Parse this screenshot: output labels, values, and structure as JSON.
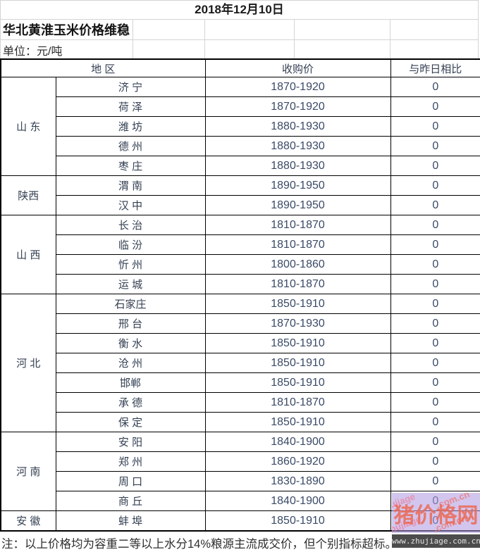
{
  "page": {
    "date_title": "2018年12月10日",
    "headline": "华北黄淮玉米价格维稳",
    "unit_label": "单位：元/吨",
    "note": "注：以上价格均为容重二等以上水分14%粮源主流成交价，但个别指标超标。"
  },
  "table": {
    "headers": {
      "region": "地 区",
      "price": "收购价",
      "compare": "与昨日相比"
    },
    "sections": [
      {
        "province": "山 东",
        "rows": [
          {
            "city": "济 宁",
            "price": "1870-1920",
            "compare": "0"
          },
          {
            "city": "荷 泽",
            "price": "1870-1920",
            "compare": "0"
          },
          {
            "city": "潍 坊",
            "price": "1880-1930",
            "compare": "0"
          },
          {
            "city": "德 州",
            "price": "1880-1930",
            "compare": "0"
          },
          {
            "city": "枣 庄",
            "price": "1880-1930",
            "compare": "0"
          }
        ]
      },
      {
        "province": "陕西",
        "rows": [
          {
            "city": "渭 南",
            "price": "1890-1950",
            "compare": "0"
          },
          {
            "city": "汉 中",
            "price": "1890-1950",
            "compare": "0"
          }
        ]
      },
      {
        "province": "山 西",
        "rows": [
          {
            "city": "长 治",
            "price": "1810-1870",
            "compare": "0"
          },
          {
            "city": "临 汾",
            "price": "1810-1870",
            "compare": "0"
          },
          {
            "city": "忻 州",
            "price": "1800-1860",
            "compare": "0"
          },
          {
            "city": "运 城",
            "price": "1810-1870",
            "compare": "0"
          }
        ]
      },
      {
        "province": "河 北",
        "rows": [
          {
            "city": "石家庄",
            "price": "1850-1910",
            "compare": "0"
          },
          {
            "city": "邢 台",
            "price": "1870-1930",
            "compare": "0"
          },
          {
            "city": "衡 水",
            "price": "1850-1910",
            "compare": "0"
          },
          {
            "city": "沧 州",
            "price": "1850-1910",
            "compare": "0"
          },
          {
            "city": "邯郸",
            "price": "1850-1910",
            "compare": "0"
          },
          {
            "city": "承 德",
            "price": "1810-1870",
            "compare": "0"
          },
          {
            "city": "保 定",
            "price": "1850-1910",
            "compare": "0"
          }
        ]
      },
      {
        "province": "河 南",
        "rows": [
          {
            "city": "安 阳",
            "price": "1840-1900",
            "compare": "0"
          },
          {
            "city": "郑 州",
            "price": "1860-1920",
            "compare": "0"
          },
          {
            "city": "周 口",
            "price": "1830-1890",
            "compare": "0"
          },
          {
            "city": "商 丘",
            "price": "1840-1900",
            "compare": "0"
          }
        ]
      },
      {
        "province": "安 徽",
        "rows": [
          {
            "city": "蚌 埠",
            "price": "1850-1910",
            "compare": "0"
          }
        ]
      }
    ]
  },
  "watermark": {
    "site_name": "猪价格网",
    "site_url": "www.zhujiage.com.cn",
    "diagonal_left": "zhujiage",
    "diagonal_right": ".com.cn",
    "colors": {
      "overlay": "#ad98e0",
      "brand_red": "#ec6854",
      "bar_bg": "#4c4c4c",
      "bar_text": "#e3e3e3"
    }
  }
}
